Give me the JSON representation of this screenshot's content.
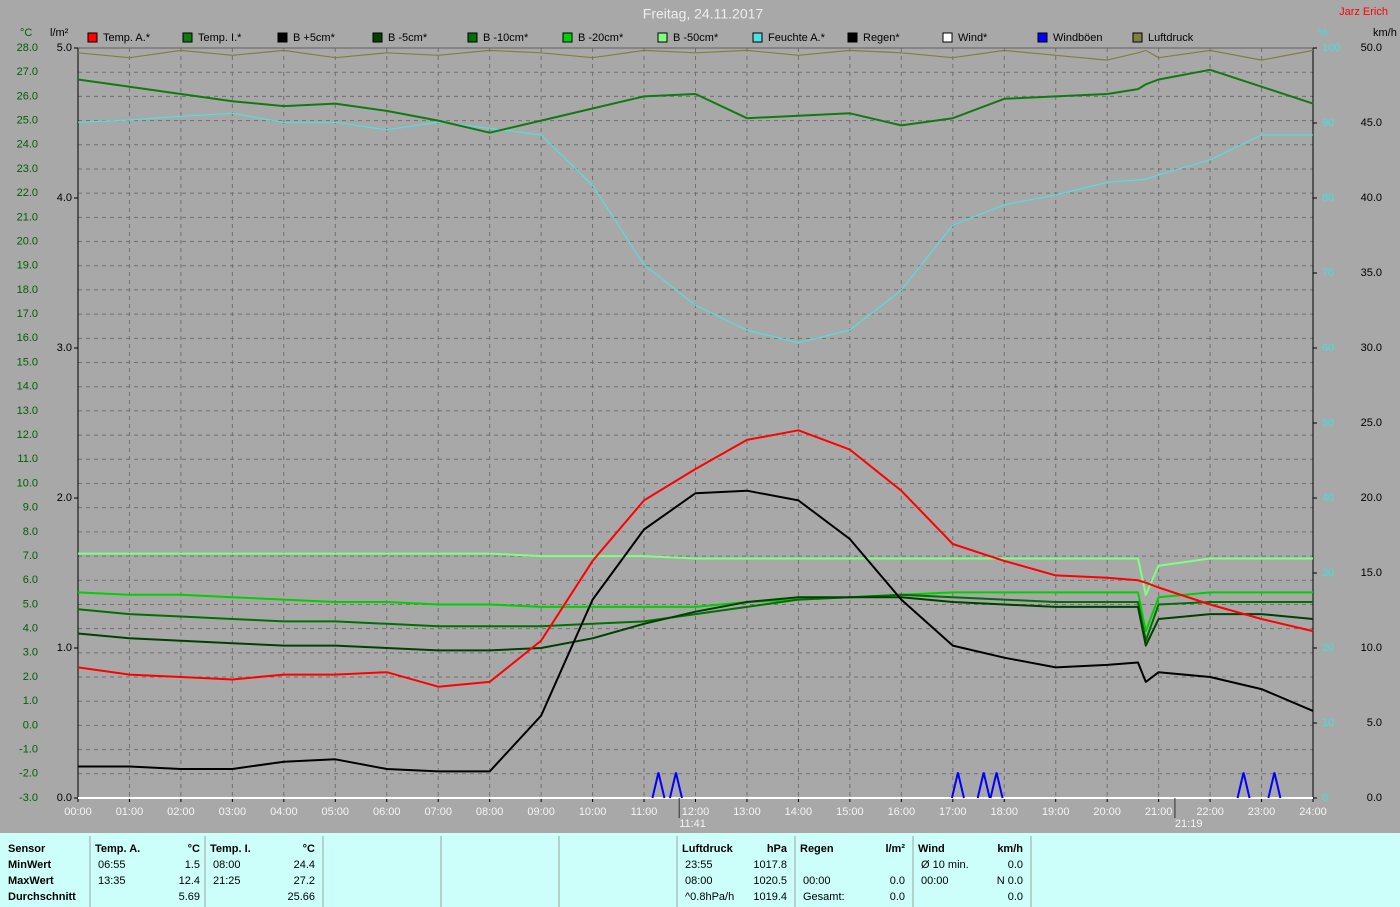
{
  "chart_data": {
    "type": "line",
    "title": "Freitag, 24.11.2017",
    "author": "Jarz Erich",
    "y_unit": "°C",
    "y2_unit": "l/m²",
    "y3_unit": "%",
    "y4_unit": "km/h",
    "x": [
      0,
      1,
      2,
      3,
      4,
      5,
      6,
      7,
      8,
      9,
      10,
      11,
      12,
      13,
      14,
      15,
      16,
      17,
      18,
      19,
      20,
      20.6,
      20.75,
      21,
      22,
      23,
      24
    ],
    "xlim": [
      0,
      24
    ],
    "xticks": [
      {
        "value": 0,
        "label": "00:00"
      },
      {
        "value": 1,
        "label": "01:00"
      },
      {
        "value": 2,
        "label": "02:00"
      },
      {
        "value": 3,
        "label": "03:00"
      },
      {
        "value": 4,
        "label": "04:00"
      },
      {
        "value": 5,
        "label": "05:00"
      },
      {
        "value": 6,
        "label": "06:00"
      },
      {
        "value": 7,
        "label": "07:00"
      },
      {
        "value": 8,
        "label": "08:00"
      },
      {
        "value": 9,
        "label": "09:00"
      },
      {
        "value": 10,
        "label": "10:00"
      },
      {
        "value": 11,
        "label": "11:00"
      },
      {
        "value": 12,
        "label": "12:00"
      },
      {
        "value": 13,
        "label": "13:00"
      },
      {
        "value": 14,
        "label": "14:00"
      },
      {
        "value": 15,
        "label": "15:00"
      },
      {
        "value": 16,
        "label": "16:00"
      },
      {
        "value": 17,
        "label": "17:00"
      },
      {
        "value": 18,
        "label": "18:00"
      },
      {
        "value": 19,
        "label": "19:00"
      },
      {
        "value": 20,
        "label": "20:00"
      },
      {
        "value": 21,
        "label": "21:00"
      },
      {
        "value": 22,
        "label": "22:00"
      },
      {
        "value": 23,
        "label": "23:00"
      },
      {
        "value": 24,
        "label": "24:00"
      }
    ],
    "ylim": [
      -3,
      28
    ],
    "yticks": [
      {
        "value": -3,
        "label": "-3.0"
      },
      {
        "value": -2,
        "label": "-2.0"
      },
      {
        "value": -1,
        "label": "-1.0"
      },
      {
        "value": 0,
        "label": "0.0"
      },
      {
        "value": 1,
        "label": "1.0"
      },
      {
        "value": 2,
        "label": "2.0"
      },
      {
        "value": 3,
        "label": "3.0"
      },
      {
        "value": 4,
        "label": "4.0"
      },
      {
        "value": 5,
        "label": "5.0"
      },
      {
        "value": 6,
        "label": "6.0"
      },
      {
        "value": 7,
        "label": "7.0"
      },
      {
        "value": 8,
        "label": "8.0"
      },
      {
        "value": 9,
        "label": "9.0"
      },
      {
        "value": 10,
        "label": "10.0"
      },
      {
        "value": 11,
        "label": "11.0"
      },
      {
        "value": 12,
        "label": "12.0"
      },
      {
        "value": 13,
        "label": "13.0"
      },
      {
        "value": 14,
        "label": "14.0"
      },
      {
        "value": 15,
        "label": "15.0"
      },
      {
        "value": 16,
        "label": "16.0"
      },
      {
        "value": 17,
        "label": "17.0"
      },
      {
        "value": 18,
        "label": "18.0"
      },
      {
        "value": 19,
        "label": "19.0"
      },
      {
        "value": 20,
        "label": "20.0"
      },
      {
        "value": 21,
        "label": "21.0"
      },
      {
        "value": 22,
        "label": "22.0"
      },
      {
        "value": 23,
        "label": "23.0"
      },
      {
        "value": 24,
        "label": "24.0"
      },
      {
        "value": 25,
        "label": "25.0"
      },
      {
        "value": 26,
        "label": "26.0"
      },
      {
        "value": 27,
        "label": "27.0"
      },
      {
        "value": 28,
        "label": "28.0"
      }
    ],
    "y2lim": [
      0,
      5
    ],
    "y2ticks": [
      {
        "value": 0,
        "label": "0.0"
      },
      {
        "value": 1,
        "label": "1.0"
      },
      {
        "value": 2,
        "label": "2.0"
      },
      {
        "value": 3,
        "label": "3.0"
      },
      {
        "value": 4,
        "label": "4.0"
      },
      {
        "value": 5,
        "label": "5.0"
      }
    ],
    "y3lim": [
      0,
      100
    ],
    "y3ticks": [
      0,
      10,
      20,
      30,
      40,
      50,
      60,
      70,
      80,
      90,
      100
    ],
    "y4lim": [
      0,
      50
    ],
    "y4ticks": [
      {
        "value": 0,
        "label": "0.0"
      },
      {
        "value": 5,
        "label": "5.0"
      },
      {
        "value": 10,
        "label": "10.0"
      },
      {
        "value": 15,
        "label": "15.0"
      },
      {
        "value": 20,
        "label": "20.0"
      },
      {
        "value": 25,
        "label": "25.0"
      },
      {
        "value": 30,
        "label": "30.0"
      },
      {
        "value": 35,
        "label": "35.0"
      },
      {
        "value": 40,
        "label": "40.0"
      },
      {
        "value": 45,
        "label": "45.0"
      },
      {
        "value": 50,
        "label": "50.0"
      }
    ],
    "grid": true,
    "series": [
      {
        "name": "Luftdruck",
        "color": "#808040",
        "axis": "y",
        "values": [
          27.8,
          27.6,
          27.9,
          27.7,
          27.9,
          27.6,
          27.8,
          27.7,
          27.9,
          27.8,
          27.6,
          27.9,
          27.8,
          27.9,
          27.7,
          27.9,
          27.8,
          27.6,
          27.9,
          27.7,
          27.5,
          27.8,
          27.9,
          27.6,
          27.9,
          27.5,
          27.9
        ]
      },
      {
        "name": "Feuchte A.*",
        "color": "#50e0e0",
        "axis": "y3",
        "values": [
          90.1,
          90.4,
          90.9,
          91.3,
          90.1,
          90.1,
          89.1,
          90.1,
          89.3,
          88.4,
          81.7,
          71.1,
          65.7,
          62.4,
          60.7,
          62.4,
          67.7,
          76.4,
          79.1,
          80.4,
          82.1,
          82.4,
          82.5,
          83.1,
          85.1,
          88.4,
          88.4
        ]
      },
      {
        "name": "Temp. I.*",
        "color": "#107a10",
        "axis": "y",
        "values": [
          26.7,
          26.4,
          26.1,
          25.8,
          25.6,
          25.7,
          25.4,
          25.0,
          24.5,
          25.0,
          25.5,
          26.0,
          26.1,
          25.1,
          25.2,
          25.3,
          24.8,
          25.1,
          25.9,
          26.0,
          26.1,
          26.3,
          26.5,
          26.7,
          27.1,
          26.4,
          25.7
        ]
      },
      {
        "name": "B -50cm*",
        "color": "#80ff80",
        "axis": "y",
        "values": [
          7.1,
          7.1,
          7.1,
          7.1,
          7.1,
          7.1,
          7.1,
          7.1,
          7.1,
          7.0,
          7.0,
          7.0,
          6.9,
          6.9,
          6.9,
          6.9,
          6.9,
          6.9,
          6.9,
          6.9,
          6.9,
          6.9,
          5.4,
          6.6,
          6.9,
          6.9,
          6.9
        ]
      },
      {
        "name": "B -20cm*",
        "color": "#00d000",
        "axis": "y",
        "values": [
          5.5,
          5.4,
          5.4,
          5.3,
          5.2,
          5.1,
          5.1,
          5.0,
          5.0,
          4.9,
          4.9,
          4.9,
          4.9,
          5.1,
          5.2,
          5.3,
          5.4,
          5.5,
          5.5,
          5.5,
          5.5,
          5.5,
          3.9,
          5.3,
          5.5,
          5.5,
          5.5
        ]
      },
      {
        "name": "B -10cm*",
        "color": "#007000",
        "axis": "y",
        "values": [
          4.8,
          4.6,
          4.5,
          4.4,
          4.3,
          4.3,
          4.2,
          4.1,
          4.1,
          4.1,
          4.2,
          4.3,
          4.6,
          4.9,
          5.2,
          5.3,
          5.4,
          5.3,
          5.2,
          5.1,
          5.1,
          5.1,
          3.5,
          5.0,
          5.1,
          5.1,
          5.1
        ]
      },
      {
        "name": "B -5cm*",
        "color": "#004000",
        "axis": "y",
        "values": [
          3.8,
          3.6,
          3.5,
          3.4,
          3.3,
          3.3,
          3.2,
          3.1,
          3.1,
          3.2,
          3.6,
          4.2,
          4.7,
          5.1,
          5.3,
          5.3,
          5.3,
          5.1,
          5.0,
          4.9,
          4.9,
          4.9,
          3.3,
          4.4,
          4.6,
          4.6,
          4.4
        ]
      },
      {
        "name": "B +5cm*",
        "color": "#000000",
        "axis": "y",
        "values": [
          -1.7,
          -1.7,
          -1.8,
          -1.8,
          -1.5,
          -1.4,
          -1.8,
          -1.9,
          -1.9,
          0.4,
          5.2,
          8.1,
          9.6,
          9.7,
          9.3,
          7.7,
          5.2,
          3.3,
          2.8,
          2.4,
          2.5,
          2.6,
          1.8,
          2.2,
          2.0,
          1.5,
          0.6
        ]
      },
      {
        "name": "Temp. A.*",
        "color": "#ff0000",
        "axis": "y",
        "values": [
          2.4,
          2.1,
          2.0,
          1.9,
          2.1,
          2.1,
          2.2,
          1.6,
          1.8,
          3.5,
          6.8,
          9.3,
          10.6,
          11.8,
          12.2,
          11.4,
          9.7,
          7.5,
          6.8,
          6.2,
          6.1,
          6.0,
          5.9,
          5.7,
          5.0,
          4.4,
          3.9
        ]
      },
      {
        "name": "Regen*",
        "color": "#000000",
        "axis": "y2",
        "values": [
          0,
          0,
          0,
          0,
          0,
          0,
          0,
          0,
          0,
          0,
          0,
          0,
          0,
          0,
          0,
          0,
          0,
          0,
          0,
          0,
          0,
          0,
          0,
          0,
          0,
          0,
          0
        ]
      },
      {
        "name": "Wind*",
        "color": "#ffffff",
        "axis": "y4",
        "values": [
          0,
          0,
          0,
          0,
          0,
          0,
          0,
          0,
          0,
          0,
          0,
          0,
          0,
          0,
          0,
          0,
          0,
          0,
          0,
          0,
          0,
          0,
          0,
          0,
          0,
          0,
          0
        ]
      },
      {
        "name": "Windböen",
        "color": "#0000ff",
        "axis": "y4",
        "style": "spikes",
        "x": [
          11.28,
          11.62,
          17.1,
          17.6,
          17.85,
          22.65,
          23.25
        ],
        "values": [
          1.7,
          1.7,
          1.7,
          1.7,
          1.7,
          1.7,
          1.7
        ]
      }
    ],
    "legend_order": [
      8,
      2,
      7,
      6,
      5,
      4,
      3,
      1,
      9,
      10,
      11,
      0
    ],
    "markers": [
      {
        "x": 11.683,
        "label": "11:41"
      },
      {
        "x": 21.317,
        "label": "21:19"
      }
    ]
  },
  "stats": {
    "row_labels": [
      "Sensor",
      "MinWert",
      "MaxWert",
      "Durchschnitt"
    ],
    "columns": [
      {
        "title": "Temp. A.",
        "unit": "°C",
        "cells": [
          {
            "time": "06:55",
            "value": "1.5"
          },
          {
            "time": "13:35",
            "value": "12.4"
          },
          {
            "value": "5.69"
          }
        ]
      },
      {
        "title": "Temp. I.",
        "unit": "°C",
        "cells": [
          {
            "time": "08:00",
            "value": "24.4"
          },
          {
            "time": "21:25",
            "value": "27.2"
          },
          {
            "value": "25.66"
          }
        ]
      },
      {
        "title": "Luftdruck",
        "unit": "hPa",
        "cells": [
          {
            "time": "23:55",
            "value": "1017.8"
          },
          {
            "time": "08:00",
            "value": "1020.5"
          },
          {
            "time": "^0.8hPa/h",
            "value": "1019.4"
          }
        ]
      },
      {
        "title": "Regen",
        "unit": "l/m²",
        "cells": [
          {},
          {
            "time": "00:00",
            "value": "0.0"
          },
          {
            "time": "Gesamt:",
            "value": "0.0"
          }
        ]
      },
      {
        "title": "Wind",
        "unit": "km/h",
        "cells": [
          {
            "time": "Ø 10 min.",
            "value": "0.0"
          },
          {
            "time": "00:00",
            "value": "N 0.0"
          },
          {
            "value": "0.0"
          }
        ]
      }
    ]
  }
}
